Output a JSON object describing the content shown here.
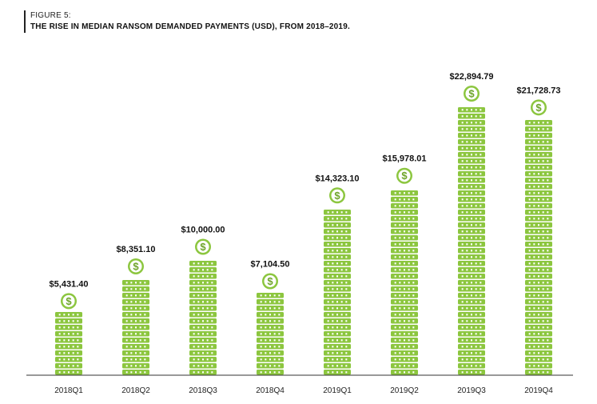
{
  "figure": {
    "label": "FIGURE 5:",
    "title": "THE RISE IN MEDIAN RANSOM DEMANDED PAYMENTS (USD), FROM 2018–2019."
  },
  "colors": {
    "coin": "#8CC63F",
    "coin_dark": "#6FA52B",
    "axis": "#333333",
    "text": "#111111"
  },
  "icon": "dollar-coin-icon",
  "chart_data": {
    "type": "bar",
    "title": "THE RISE IN MEDIAN RANSOM DEMANDED PAYMENTS (USD), FROM 2018–2019.",
    "xlabel": "",
    "ylabel": "USD",
    "ylim": [
      0,
      25000
    ],
    "categories": [
      "2018Q1",
      "2018Q2",
      "2018Q3",
      "2018Q4",
      "2019Q1",
      "2019Q2",
      "2019Q3",
      "2019Q4"
    ],
    "values": [
      5431.4,
      8351.1,
      10000.0,
      7104.5,
      14323.1,
      15978.01,
      22894.79,
      21728.73
    ],
    "value_labels": [
      "$5,431.40",
      "$8,351.10",
      "$10,000.00",
      "$7,104.50",
      "$14,323.10",
      "$15,978.01",
      "$22,894.79",
      "$21,728.73"
    ],
    "grid": false,
    "legend": "none"
  }
}
